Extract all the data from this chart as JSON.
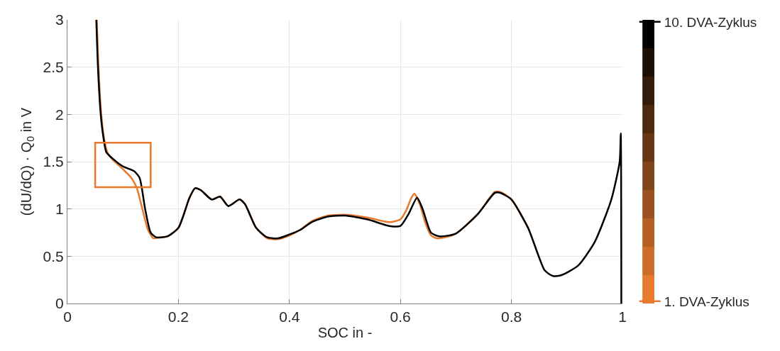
{
  "chart_data": {
    "type": "line",
    "xlabel": "SOC in -",
    "ylabel": "(dU/dQ) · Q$_{0}$ in V",
    "xlim": [
      0,
      1
    ],
    "xticks": [
      0,
      0.2,
      0.4,
      0.6,
      0.8,
      1
    ],
    "ylim": [
      0,
      3
    ],
    "yticks": [
      0,
      0.5,
      1,
      1.5,
      2,
      2.5,
      3
    ],
    "grid": true,
    "legend": "right",
    "series": [
      {
        "name": "1. DVA-Zyklus",
        "color": "#e87a2e",
        "x": [
          0.053,
          0.056,
          0.061,
          0.066,
          0.072,
          0.08,
          0.1,
          0.115,
          0.125,
          0.135,
          0.145,
          0.155,
          0.165,
          0.18,
          0.2,
          0.22,
          0.23,
          0.24,
          0.26,
          0.275,
          0.29,
          0.31,
          0.32,
          0.34,
          0.36,
          0.38,
          0.4,
          0.42,
          0.44,
          0.47,
          0.5,
          0.54,
          0.58,
          0.6,
          0.61,
          0.62,
          0.625,
          0.635,
          0.645,
          0.655,
          0.665,
          0.68,
          0.7,
          0.74,
          0.77,
          0.78,
          0.8,
          0.83
        ],
        "values": [
          3.0,
          2.5,
          2.0,
          1.75,
          1.6,
          1.53,
          1.42,
          1.33,
          1.22,
          1.0,
          0.78,
          0.69,
          0.7,
          0.71,
          0.8,
          1.12,
          1.22,
          1.2,
          1.1,
          1.13,
          1.03,
          1.1,
          1.05,
          0.8,
          0.69,
          0.68,
          0.72,
          0.78,
          0.87,
          0.93,
          0.94,
          0.91,
          0.86,
          0.89,
          0.98,
          1.12,
          1.16,
          1.05,
          0.85,
          0.72,
          0.69,
          0.7,
          0.74,
          0.95,
          1.18,
          1.18,
          1.1,
          0.8
        ]
      },
      {
        "name": "10. DVA-Zyklus",
        "color": "#000000",
        "x": [
          0.052,
          0.055,
          0.06,
          0.065,
          0.07,
          0.08,
          0.1,
          0.12,
          0.13,
          0.14,
          0.15,
          0.16,
          0.18,
          0.2,
          0.22,
          0.23,
          0.24,
          0.26,
          0.275,
          0.29,
          0.31,
          0.32,
          0.34,
          0.36,
          0.38,
          0.4,
          0.42,
          0.44,
          0.47,
          0.5,
          0.54,
          0.58,
          0.6,
          0.615,
          0.63,
          0.64,
          0.655,
          0.67,
          0.7,
          0.74,
          0.77,
          0.78,
          0.8,
          0.83,
          0.86,
          0.875,
          0.89,
          0.92,
          0.95,
          0.98,
          0.995,
          0.997,
          0.998
        ],
        "values": [
          3.0,
          2.5,
          2.0,
          1.75,
          1.6,
          1.54,
          1.45,
          1.4,
          1.33,
          1.0,
          0.75,
          0.7,
          0.71,
          0.8,
          1.12,
          1.22,
          1.2,
          1.1,
          1.13,
          1.03,
          1.1,
          1.05,
          0.8,
          0.7,
          0.69,
          0.73,
          0.78,
          0.86,
          0.92,
          0.93,
          0.89,
          0.82,
          0.82,
          0.95,
          1.12,
          1.0,
          0.75,
          0.71,
          0.74,
          0.95,
          1.17,
          1.17,
          1.1,
          0.8,
          0.35,
          0.29,
          0.3,
          0.4,
          0.65,
          1.1,
          1.5,
          1.8,
          0.0
        ]
      }
    ]
  }
}
